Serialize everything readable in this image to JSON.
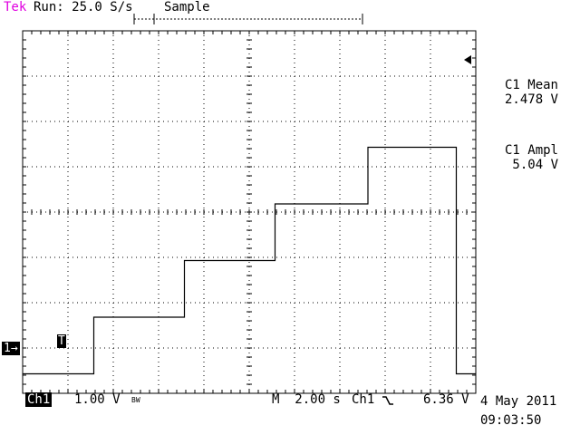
{
  "header": {
    "brand": "Tek",
    "run_status": "Run: 25.0 S/s",
    "acq_mode": "Sample"
  },
  "readouts": {
    "mean_label": "C1 Mean",
    "mean_value": "2.478 V",
    "ampl_label": "C1 Ampl",
    "ampl_value": "5.04 V"
  },
  "footer": {
    "channel_badge": "Ch1",
    "volts_per_div": "1.00 V",
    "bw_flag": "BW",
    "timebase": "M  2.00 s",
    "trigger_source": "Ch1",
    "trigger_level": "6.36 V",
    "date": "4 May 2011",
    "time": "09:03:50"
  },
  "markers": {
    "channel_marker": "1→",
    "trigger_marker": "T"
  },
  "colors": {
    "brand": "#e000e0",
    "trace": "#000000",
    "grid": "#000000"
  },
  "chart_data": {
    "type": "line",
    "title": "",
    "xlabel": "",
    "ylabel": "",
    "x_unit": "s",
    "y_unit": "V",
    "xlim": [
      -1.64,
      18.36
    ],
    "ylim": [
      -0.43,
      7.57
    ],
    "grid": true,
    "series": [
      {
        "x": [
          -1.64,
          1.5,
          1.5,
          5.5,
          5.5,
          9.5,
          9.5,
          13.6,
          13.6,
          17.5,
          17.5,
          18.36
        ],
        "y": [
          0.0,
          0.0,
          1.25,
          1.25,
          2.5,
          2.5,
          3.75,
          3.75,
          5.0,
          5.0,
          0.0,
          0.0
        ]
      }
    ]
  }
}
